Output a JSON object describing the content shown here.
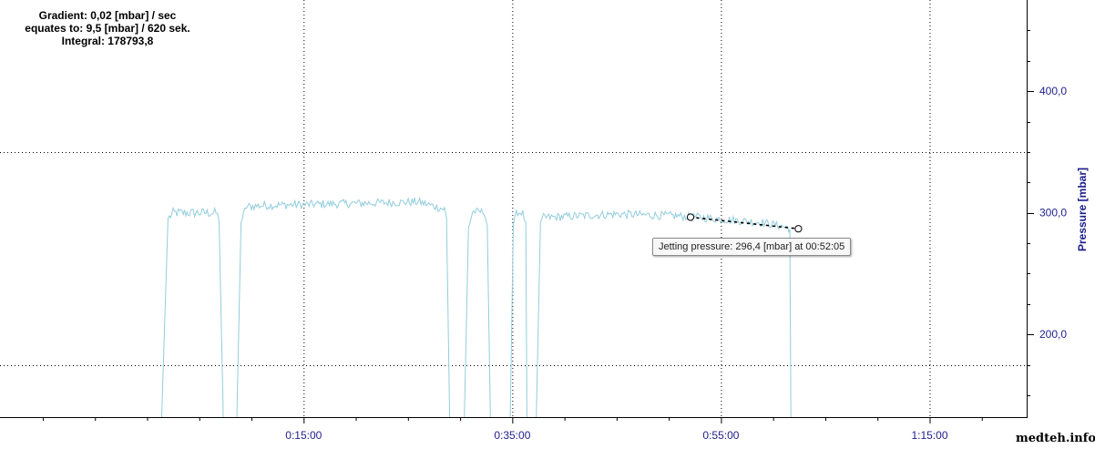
{
  "info": {
    "gradient": "Gradient: 0,02 [mbar] / sec",
    "equates": "equates to: 9,5 [mbar] / 620 sek.",
    "integral": "Integral: 178793,8"
  },
  "tooltip": {
    "text": "Jetting pressure: 296,4 [mbar] at 00:52:05"
  },
  "watermark": "medteh.info",
  "colors": {
    "series": "#92cddc",
    "axis_text": "#1f1f8f",
    "axis_title": "#1a1a8c",
    "grid": "#000000"
  },
  "chart_data": {
    "type": "line",
    "xlabel": "",
    "ylabel": "Pressure [mbar]",
    "x_unit": "minutes",
    "xlim": [
      -14.1,
      84.3
    ],
    "ylim": [
      132,
      475
    ],
    "x_ticks": [
      {
        "value": 15,
        "label": "0:15:00"
      },
      {
        "value": 35,
        "label": "0:35:00"
      },
      {
        "value": 55,
        "label": "0:55:00"
      },
      {
        "value": 75,
        "label": "1:15:00"
      }
    ],
    "x_gridlines": [
      15,
      35,
      55,
      75
    ],
    "y_ticks": [
      {
        "value": 200,
        "label": "200,0"
      },
      {
        "value": 300,
        "label": "300,0"
      },
      {
        "value": 400,
        "label": "400,0"
      }
    ],
    "y_gridlines": [
      175,
      350
    ],
    "grid": true,
    "legend": "none",
    "series": [
      {
        "segments": [
          {
            "x": [
              1.4,
              2.0,
              2.5,
              6.6,
              6.9,
              7.3
            ],
            "y": [
              132,
              295,
              300,
              300,
              295,
              132
            ],
            "noise": 8
          },
          {
            "x": [
              8.6,
              9.0,
              9.5,
              11.0,
              21.0,
              26.0,
              28.5,
              28.7,
              29.0
            ],
            "y": [
              132,
              292,
              305,
              306,
              308,
              309,
              303,
              295,
              132
            ],
            "noise": 7
          },
          {
            "x": [
              30.4,
              30.8,
              31.2,
              32.3,
              32.6,
              32.9
            ],
            "y": [
              132,
              288,
              301,
              301,
              290,
              132
            ],
            "noise": 6
          },
          {
            "x": [
              34.8,
              35.1,
              35.4,
              36.0,
              36.3,
              36.4
            ],
            "y": [
              132,
              290,
              300,
              300,
              290,
              132
            ],
            "noise": 5
          },
          {
            "x": [
              37.3,
              37.7,
              38.0,
              45.0,
              52.0,
              59.0,
              61.4,
              61.6,
              61.7
            ],
            "y": [
              132,
              292,
              296,
              299,
              297,
              292,
              288,
              286,
              132
            ],
            "noise": 7
          }
        ]
      }
    ],
    "gradient_marker": {
      "x": [
        52.08,
        62.42
      ],
      "y": [
        296.4,
        286.9
      ]
    }
  }
}
